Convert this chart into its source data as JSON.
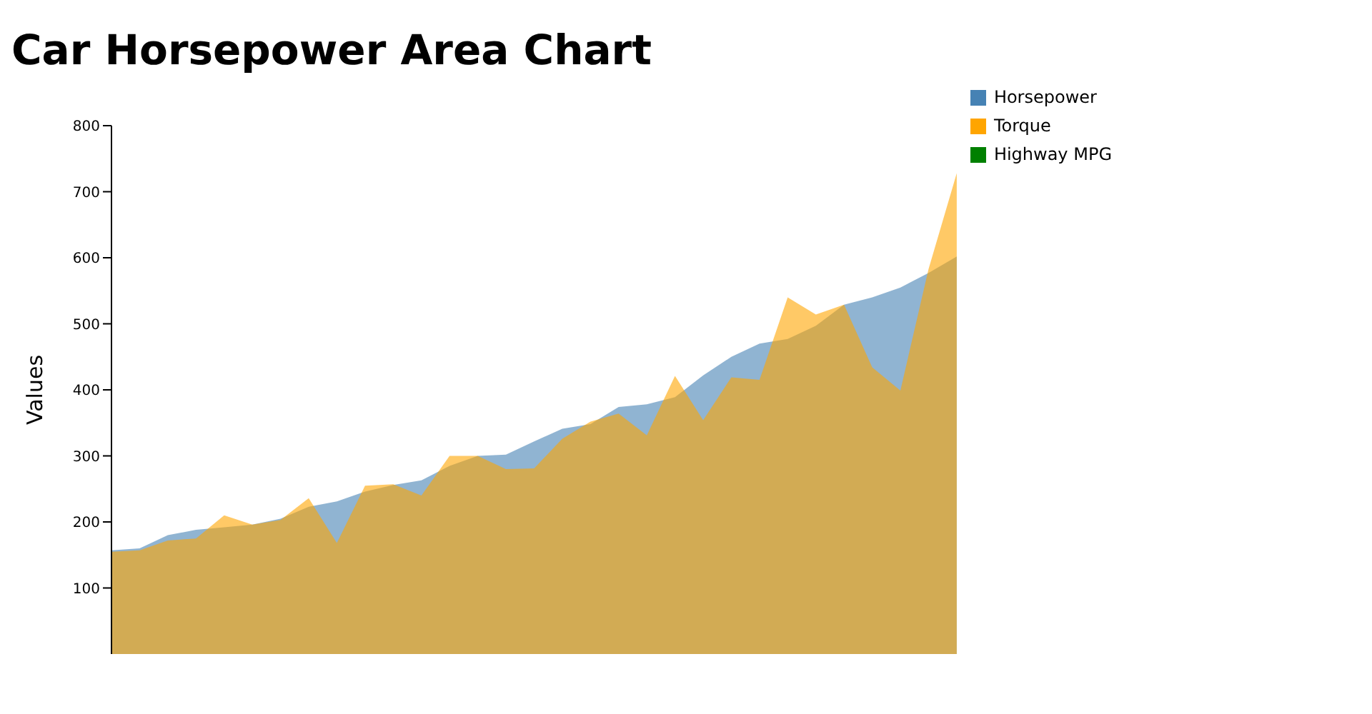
{
  "chart_data": {
    "type": "area",
    "title": "Car Horsepower Area Chart",
    "ylabel": "Values",
    "categories": [
      null,
      null,
      null,
      null,
      null,
      null,
      null,
      null,
      null,
      null,
      null,
      null,
      null,
      null,
      null,
      null,
      null,
      null,
      null,
      null,
      null,
      null,
      null,
      null,
      null,
      null,
      null,
      null,
      null,
      null,
      null
    ],
    "series": [
      {
        "name": "Horsepower",
        "color": "#4682b4",
        "values": [
          157,
          160,
          180,
          188,
          192,
          196,
          205,
          223,
          231,
          246,
          256,
          263,
          285,
          300,
          302,
          322,
          341,
          348,
          374,
          378,
          389,
          422,
          450,
          470,
          477,
          497,
          529,
          540,
          555,
          577,
          602
        ]
      },
      {
        "name": "Torque",
        "color": "#ffa500",
        "values": [
          155,
          157,
          172,
          175,
          210,
          196,
          203,
          236,
          168,
          255,
          257,
          240,
          300,
          300,
          280,
          281,
          326,
          352,
          364,
          331,
          421,
          354,
          419,
          415,
          540,
          514,
          529,
          434,
          399,
          583,
          728
        ]
      },
      {
        "name": "Highway MPG",
        "color": "#008000",
        "values": [
          null,
          null,
          null,
          null,
          null,
          null,
          null,
          null,
          null,
          null,
          null,
          null,
          null,
          null,
          null,
          null,
          null,
          null,
          null,
          null,
          null,
          null,
          null,
          null,
          null,
          null,
          null,
          null,
          null,
          null,
          null
        ]
      }
    ],
    "ylim": [
      0,
      800
    ],
    "yticks": [
      100,
      200,
      300,
      400,
      500,
      600,
      700,
      800
    ],
    "tick_labels": "y",
    "legend": "top right",
    "grid": false
  }
}
